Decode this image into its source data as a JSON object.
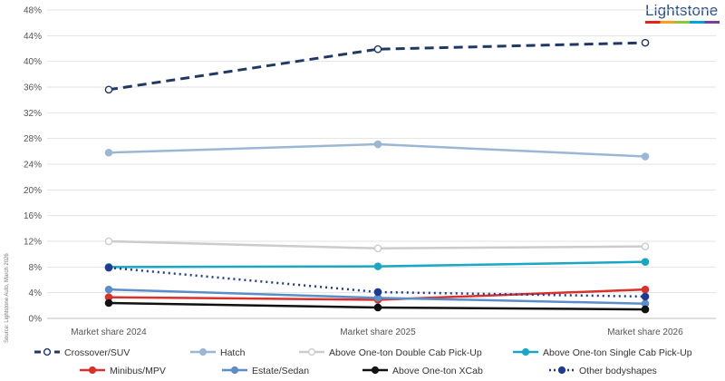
{
  "logo": {
    "text": "Lightstone"
  },
  "source": "Source: Lightstone Auto, March 2026",
  "chart_data": {
    "type": "line",
    "title": "",
    "xlabel": "",
    "ylabel": "",
    "categories": [
      "Market share 2024",
      "Market share 2025",
      "Market share 2026"
    ],
    "ylim": [
      0,
      48
    ],
    "yticks": [
      0,
      4,
      8,
      12,
      16,
      20,
      24,
      28,
      32,
      36,
      40,
      44,
      48
    ],
    "ytick_labels": [
      "0%",
      "4%",
      "8%",
      "12%",
      "16%",
      "20%",
      "24%",
      "28%",
      "32%",
      "36%",
      "40%",
      "44%",
      "48%"
    ],
    "grid": "horizontal",
    "legend_position": "bottom",
    "series": [
      {
        "name": "Crossover/SUV",
        "values": [
          35.6,
          41.9,
          42.9
        ],
        "color": "#1f3864",
        "dash": "dashed",
        "marker": "hollow"
      },
      {
        "name": "Hatch",
        "values": [
          25.8,
          27.1,
          25.2
        ],
        "color": "#9bb7d4",
        "dash": "solid",
        "marker": "filled"
      },
      {
        "name": "Above One-ton Double Cab Pick-Up",
        "values": [
          12.0,
          10.9,
          11.2
        ],
        "color": "#cccccc",
        "dash": "solid",
        "marker": "hollow"
      },
      {
        "name": "Above One-ton Single Cab Pick-Up",
        "values": [
          8.0,
          8.1,
          8.8
        ],
        "color": "#1aa7c4",
        "dash": "solid",
        "marker": "filled"
      },
      {
        "name": "Minibus/MPV",
        "values": [
          3.3,
          2.9,
          4.5
        ],
        "color": "#d9312b",
        "dash": "solid",
        "marker": "filled"
      },
      {
        "name": "Estate/Sedan",
        "values": [
          4.5,
          3.2,
          2.3
        ],
        "color": "#5b8ec9",
        "dash": "solid",
        "marker": "filled"
      },
      {
        "name": "Above One-ton XCab",
        "values": [
          2.4,
          1.7,
          1.4
        ],
        "color": "#111111",
        "dash": "solid",
        "marker": "filled"
      },
      {
        "name": "Other bodyshapes",
        "values": [
          7.9,
          4.1,
          3.4
        ],
        "color": "#1f3a93",
        "dash": "dotted",
        "marker": "filled"
      }
    ]
  }
}
